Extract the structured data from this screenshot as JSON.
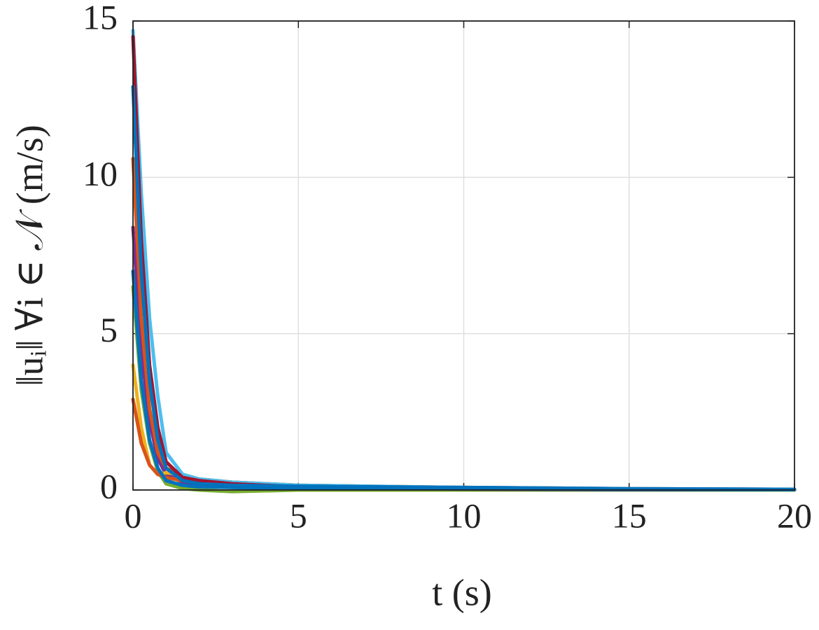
{
  "chart_data": {
    "type": "line",
    "xlabel": "t (s)",
    "ylabel": "‖uᵢ‖ ∀i ∈ 𝒩 (m/s)",
    "x": [
      0,
      0.25,
      0.5,
      0.75,
      1,
      1.5,
      2,
      3,
      5,
      10,
      15,
      20
    ],
    "series": [
      {
        "color": "#77AC30",
        "values": [
          6.5,
          3.2,
          1.5,
          0.6,
          0.2,
          0.05,
          0,
          -0.05,
          0,
          0,
          0,
          0
        ]
      },
      {
        "color": "#7E2F8E",
        "values": [
          8.4,
          4.5,
          2.2,
          1,
          0.5,
          0.25,
          0.15,
          0.1,
          0.06,
          0.03,
          0.01,
          0.01
        ]
      },
      {
        "color": "#EDB120",
        "values": [
          4,
          2,
          0.8,
          0.5,
          0.55,
          0.5,
          0.35,
          0.25,
          0.15,
          0.07,
          0.03,
          0.01
        ]
      },
      {
        "color": "#D95319",
        "values": [
          2.9,
          1.5,
          0.8,
          0.5,
          0.4,
          0.3,
          0.25,
          0.2,
          0.12,
          0.06,
          0.03,
          0.01
        ]
      },
      {
        "color": "#D95319",
        "values": [
          10.6,
          5.5,
          2.6,
          1.2,
          0.7,
          0.45,
          0.35,
          0.25,
          0.15,
          0.08,
          0.04,
          0.02
        ]
      },
      {
        "color": "#4DBEEE",
        "values": [
          14.7,
          9.5,
          5.5,
          3,
          1.2,
          0.5,
          0.35,
          0.25,
          0.15,
          0.08,
          0.04,
          0.02
        ]
      },
      {
        "color": "#A2142F",
        "values": [
          14.5,
          8,
          4,
          2,
          0.9,
          0.4,
          0.3,
          0.2,
          0.1,
          0.05,
          0.02,
          0.01
        ]
      },
      {
        "color": "#0072BD",
        "values": [
          7,
          3.5,
          1.6,
          0.7,
          0.3,
          0.15,
          0.1,
          0.08,
          0.06,
          0.04,
          0.02,
          0.01
        ]
      },
      {
        "color": "#0072BD",
        "values": [
          12.9,
          7,
          3.5,
          1.6,
          0.7,
          0.3,
          0.2,
          0.15,
          0.12,
          0.08,
          0.04,
          0.02
        ]
      }
    ],
    "xlim": [
      0,
      20
    ],
    "xticks": [
      0,
      5,
      10,
      15,
      20
    ],
    "ylim": [
      0,
      15
    ],
    "yticks": [
      0,
      5,
      10,
      15
    ],
    "grid": true
  }
}
